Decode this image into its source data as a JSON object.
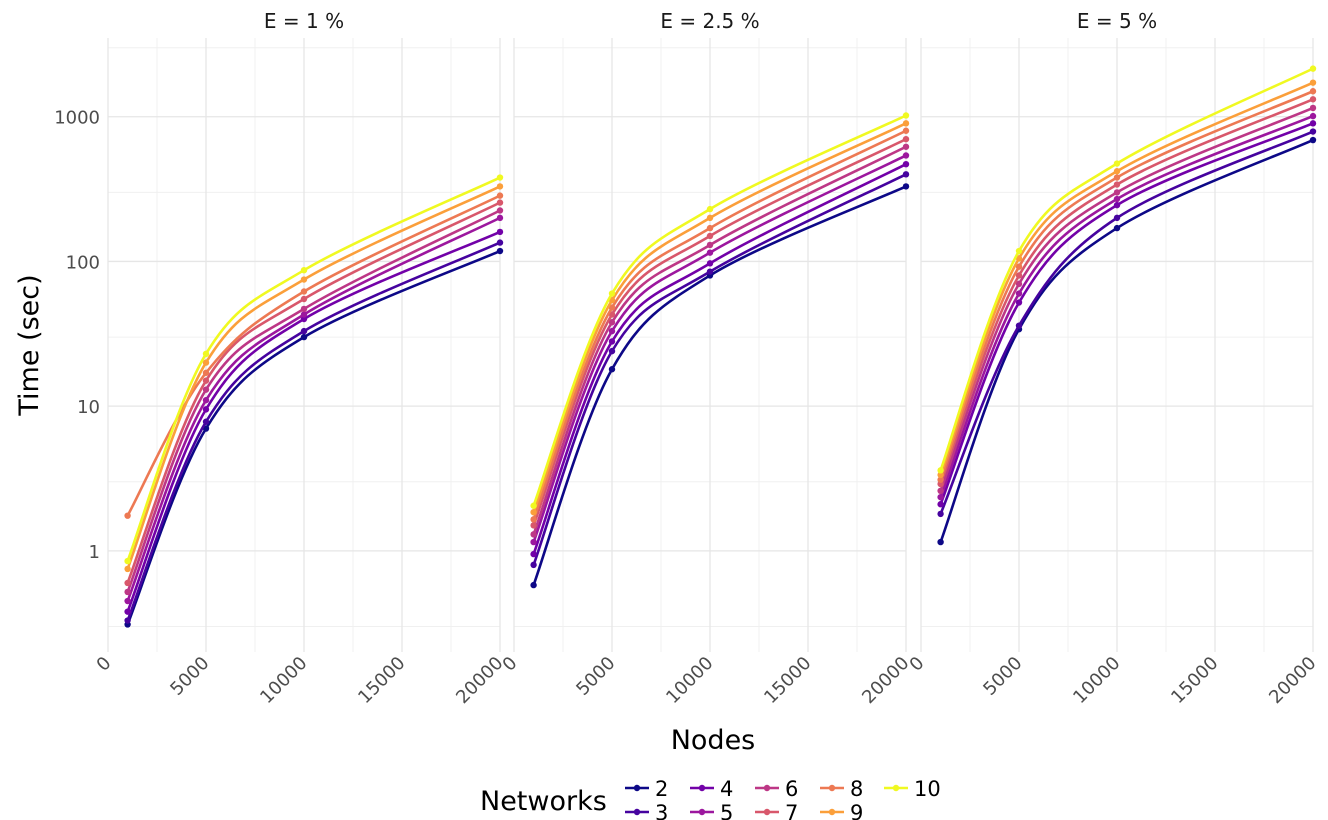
{
  "chart_data": {
    "type": "line",
    "ylabel": "Time (sec)",
    "xlabel": "Nodes",
    "yscale": "log10",
    "ylim": [
      0.2,
      3500
    ],
    "xlim": [
      0,
      20000
    ],
    "y_ticks": [
      1,
      10,
      100,
      1000
    ],
    "x_ticks": [
      0,
      5000,
      10000,
      15000,
      20000
    ],
    "grid": true,
    "legend": {
      "title": "Networks",
      "position": "bottom",
      "labels": [
        "2",
        "3",
        "4",
        "5",
        "6",
        "7",
        "8",
        "9",
        "10"
      ]
    },
    "colors": [
      "#0d0887",
      "#46039f",
      "#7201a8",
      "#9c179e",
      "#bd3786",
      "#d8576b",
      "#ed7953",
      "#fb9f3a",
      "#f0f921"
    ],
    "x": [
      1000,
      5000,
      10000,
      20000
    ],
    "panels": [
      {
        "title": "E = 1 %",
        "series": [
          {
            "name": "2",
            "values": [
              0.31,
              7.0,
              30,
              118
            ]
          },
          {
            "name": "3",
            "values": [
              0.33,
              7.8,
              33,
              135
            ]
          },
          {
            "name": "4",
            "values": [
              0.38,
              9.5,
              40,
              160
            ]
          },
          {
            "name": "5",
            "values": [
              0.45,
              11,
              43,
              200
            ]
          },
          {
            "name": "6",
            "values": [
              0.52,
              13,
              47,
              225
            ]
          },
          {
            "name": "7",
            "values": [
              0.6,
              15,
              55,
              255
            ]
          },
          {
            "name": "8",
            "values": [
              1.75,
              17,
              62,
              285
            ]
          },
          {
            "name": "9",
            "values": [
              0.75,
              20,
              75,
              330
            ]
          },
          {
            "name": "10",
            "values": [
              0.85,
              23,
              87,
              380
            ]
          }
        ]
      },
      {
        "title": "E = 2.5 %",
        "series": [
          {
            "name": "2",
            "values": [
              0.58,
              18,
              80,
              330
            ]
          },
          {
            "name": "3",
            "values": [
              0.8,
              24,
              85,
              400
            ]
          },
          {
            "name": "4",
            "values": [
              0.95,
              28,
              97,
              470
            ]
          },
          {
            "name": "5",
            "values": [
              1.15,
              33,
              115,
              540
            ]
          },
          {
            "name": "6",
            "values": [
              1.3,
              38,
              130,
              620
            ]
          },
          {
            "name": "7",
            "values": [
              1.5,
              43,
              150,
              700
            ]
          },
          {
            "name": "8",
            "values": [
              1.65,
              48,
              170,
              800
            ]
          },
          {
            "name": "9",
            "values": [
              1.85,
              54,
              200,
              900
            ]
          },
          {
            "name": "10",
            "values": [
              2.05,
              60,
              230,
              1020
            ]
          }
        ]
      },
      {
        "title": "E = 5 %",
        "series": [
          {
            "name": "2",
            "values": [
              1.15,
              34,
              170,
              690
            ]
          },
          {
            "name": "3",
            "values": [
              1.8,
              36,
              200,
              790
            ]
          },
          {
            "name": "4",
            "values": [
              2.1,
              52,
              245,
              900
            ]
          },
          {
            "name": "5",
            "values": [
              2.35,
              60,
              270,
              1010
            ]
          },
          {
            "name": "6",
            "values": [
              2.6,
              70,
              300,
              1150
            ]
          },
          {
            "name": "7",
            "values": [
              2.9,
              80,
              340,
              1320
            ]
          },
          {
            "name": "8",
            "values": [
              3.1,
              92,
              380,
              1500
            ]
          },
          {
            "name": "9",
            "values": [
              3.35,
              105,
              420,
              1720
            ]
          },
          {
            "name": "10",
            "values": [
              3.6,
              118,
              475,
              2150
            ]
          }
        ]
      }
    ]
  }
}
